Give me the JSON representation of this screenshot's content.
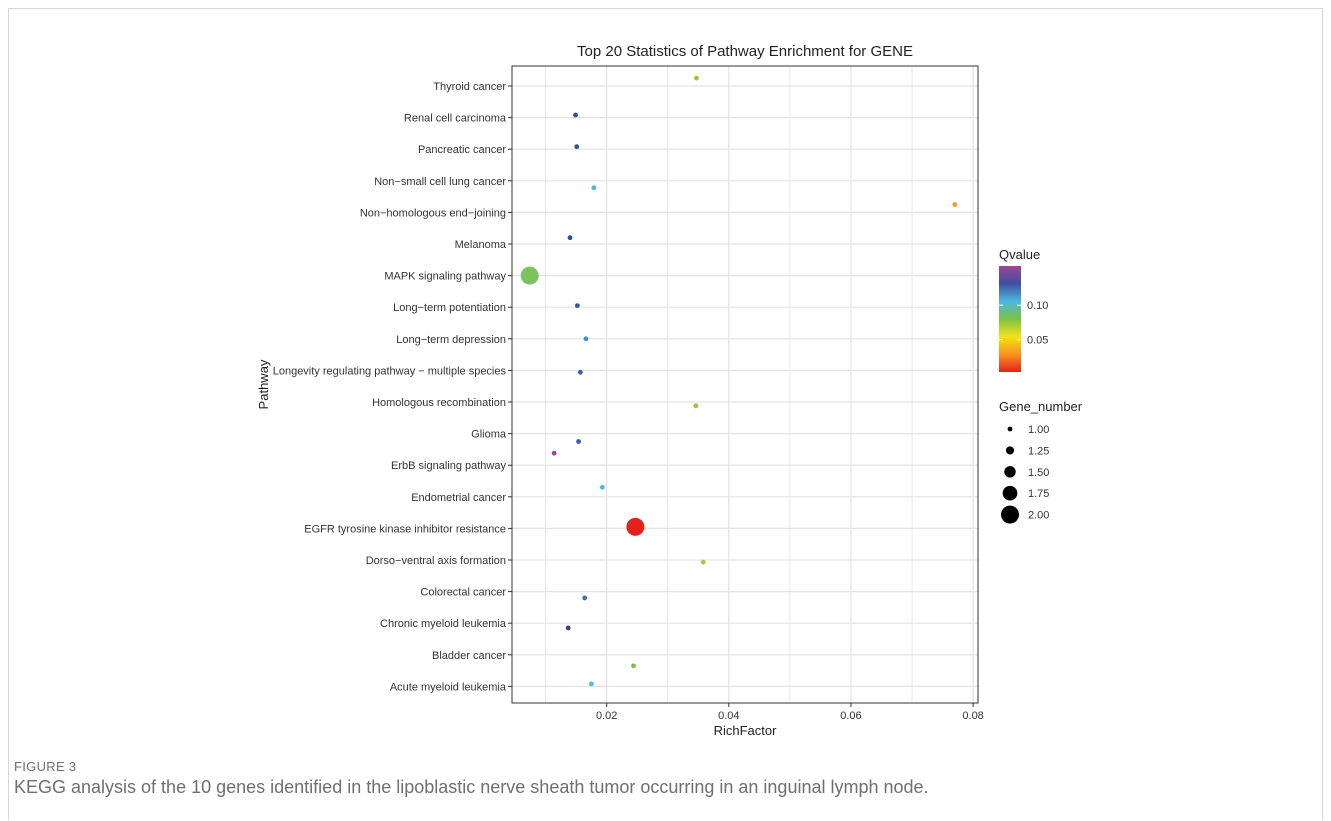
{
  "figure": {
    "label": "FIGURE 3",
    "caption": "KEGG analysis of the 10 genes identified in the lipoblastic nerve sheath tumor occurring in an inguinal lymph node."
  },
  "chart_data": {
    "type": "scatter",
    "title": "Top 20 Statistics of Pathway Enrichment for GENE",
    "xlabel": "RichFactor",
    "ylabel": "Pathway",
    "xlim": [
      0.0045,
      0.0808
    ],
    "x_ticks": [
      "0.02",
      "0.04",
      "0.06",
      "0.08"
    ],
    "x_tick_values": [
      0.02,
      0.04,
      0.06,
      0.08
    ],
    "grid": true,
    "categories": [
      "Thyroid cancer",
      "Renal cell carcinoma",
      "Pancreatic cancer",
      "Non−small cell lung cancer",
      "Non−homologous end−joining",
      "Melanoma",
      "MAPK signaling pathway",
      "Long−term potentiation",
      "Long−term depression",
      "Longevity regulating pathway − multiple species",
      "Homologous recombination",
      "Glioma",
      "ErbB signaling pathway",
      "Endometrial cancer",
      "EGFR tyrosine kinase inhibitor resistance",
      "Dorso−ventral axis formation",
      "Colorectal cancer",
      "Chronic myeloid leukemia",
      "Bladder cancer",
      "Acute myeloid leukemia"
    ],
    "points": [
      {
        "pathway": "Thyroid cancer",
        "rich_factor": 0.0347,
        "y_offset": 0.25,
        "qvalue": 0.06,
        "gene_number": 1,
        "color": "#9bc53d"
      },
      {
        "pathway": "Renal cell carcinoma",
        "rich_factor": 0.0149,
        "y_offset": 0.08,
        "qvalue": 0.125,
        "gene_number": 1,
        "color": "#2c4d9e"
      },
      {
        "pathway": "Pancreatic cancer",
        "rich_factor": 0.0151,
        "y_offset": 0.08,
        "qvalue": 0.12,
        "gene_number": 1,
        "color": "#2c53a4"
      },
      {
        "pathway": "Non−small cell lung cancer",
        "rich_factor": 0.0179,
        "y_offset": -0.22,
        "qvalue": 0.085,
        "gene_number": 1,
        "color": "#4cb8d8"
      },
      {
        "pathway": "Non−homologous end−joining",
        "rich_factor": 0.077,
        "y_offset": 0.25,
        "qvalue": 0.04,
        "gene_number": 1,
        "color": "#f29a26"
      },
      {
        "pathway": "Melanoma",
        "rich_factor": 0.014,
        "y_offset": 0.2,
        "qvalue": 0.125,
        "gene_number": 1,
        "color": "#2c4d9e"
      },
      {
        "pathway": "MAPK signaling pathway",
        "rich_factor": 0.0074,
        "y_offset": 0.0,
        "qvalue": 0.06,
        "gene_number": 2,
        "color": "#7cc35e"
      },
      {
        "pathway": "Long−term potentiation",
        "rich_factor": 0.0152,
        "y_offset": 0.05,
        "qvalue": 0.12,
        "gene_number": 1,
        "color": "#2f58a8"
      },
      {
        "pathway": "Long−term depression",
        "rich_factor": 0.0166,
        "y_offset": 0.0,
        "qvalue": 0.1,
        "gene_number": 1,
        "color": "#4a8ac6"
      },
      {
        "pathway": "Longevity regulating pathway − multiple species",
        "rich_factor": 0.0157,
        "y_offset": -0.06,
        "qvalue": 0.12,
        "gene_number": 1,
        "color": "#3660aa"
      },
      {
        "pathway": "Homologous recombination",
        "rich_factor": 0.0346,
        "y_offset": -0.12,
        "qvalue": 0.06,
        "gene_number": 1,
        "color": "#9bc53d"
      },
      {
        "pathway": "Glioma",
        "rich_factor": 0.0154,
        "y_offset": -0.25,
        "qvalue": 0.12,
        "gene_number": 1,
        "color": "#3662ad"
      },
      {
        "pathway": "ErbB signaling pathway",
        "rich_factor": 0.0114,
        "y_offset": 0.38,
        "qvalue": 0.15,
        "gene_number": 1,
        "color": "#a0449a"
      },
      {
        "pathway": "Endometrial cancer",
        "rich_factor": 0.0193,
        "y_offset": 0.3,
        "qvalue": 0.085,
        "gene_number": 1,
        "color": "#55b9c9"
      },
      {
        "pathway": "EGFR tyrosine kinase inhibitor resistance",
        "rich_factor": 0.0247,
        "y_offset": 0.05,
        "qvalue": 0.005,
        "gene_number": 2,
        "color": "#e5201d"
      },
      {
        "pathway": "Dorso−ventral axis formation",
        "rich_factor": 0.0358,
        "y_offset": -0.07,
        "qvalue": 0.06,
        "gene_number": 1,
        "color": "#a8c83c"
      },
      {
        "pathway": "Colorectal cancer",
        "rich_factor": 0.0164,
        "y_offset": -0.2,
        "qvalue": 0.11,
        "gene_number": 1,
        "color": "#4070b8"
      },
      {
        "pathway": "Chronic myeloid leukemia",
        "rich_factor": 0.0137,
        "y_offset": -0.15,
        "qvalue": 0.14,
        "gene_number": 1,
        "color": "#3d3f8f"
      },
      {
        "pathway": "Bladder cancer",
        "rich_factor": 0.0244,
        "y_offset": -0.35,
        "qvalue": 0.06,
        "gene_number": 1,
        "color": "#7bbf45"
      },
      {
        "pathway": "Acute myeloid leukemia",
        "rich_factor": 0.0175,
        "y_offset": 0.08,
        "qvalue": 0.085,
        "gene_number": 1,
        "color": "#4cc0dd"
      }
    ],
    "legend_color": {
      "title": "Qvalue",
      "ticks": [
        "0.10",
        "0.05"
      ],
      "tick_values": [
        0.1,
        0.05
      ],
      "range": [
        0.003,
        0.157
      ],
      "gradient_colors": [
        "#a04598",
        "#3d4fa0",
        "#4cb8e0",
        "#7dc242",
        "#f4e11a",
        "#f7941d",
        "#e51f1f"
      ]
    },
    "legend_size": {
      "title": "Gene_number",
      "labels": [
        "1.00",
        "1.25",
        "1.50",
        "1.75",
        "2.00"
      ],
      "values": [
        1.0,
        1.25,
        1.5,
        1.75,
        2.0
      ]
    },
    "legend_placement": "right",
    "colors": {
      "panel_border": "#333333",
      "grid": "#e3e3e3",
      "text": "#222222"
    }
  }
}
